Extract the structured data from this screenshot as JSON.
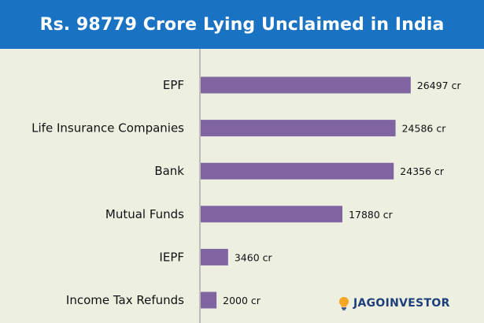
{
  "header": {
    "title": "Rs. 98779 Crore Lying Unclaimed in India"
  },
  "brand": {
    "name": "JAGOINVESTOR",
    "icon": "lightbulb-icon"
  },
  "colors": {
    "header_bg": "#1a72c3",
    "bar": "#8064a2",
    "background": "#edf0e1"
  },
  "chart_data": {
    "type": "bar",
    "orientation": "horizontal",
    "title": "Rs. 98779 Crore Lying Unclaimed in India",
    "categories": [
      "EPF",
      "Life Insurance Companies",
      "Bank",
      "Mutual Funds",
      "IEPF",
      "Income Tax Refunds"
    ],
    "values": [
      26497,
      24586,
      24356,
      17880,
      3460,
      2000
    ],
    "data_labels": [
      "26497 cr",
      "24586 cr",
      "24356 cr",
      "17880 cr",
      "3460 cr",
      "2000 cr"
    ],
    "unit": "cr",
    "xlim": [
      0,
      28000
    ],
    "grid": false
  }
}
